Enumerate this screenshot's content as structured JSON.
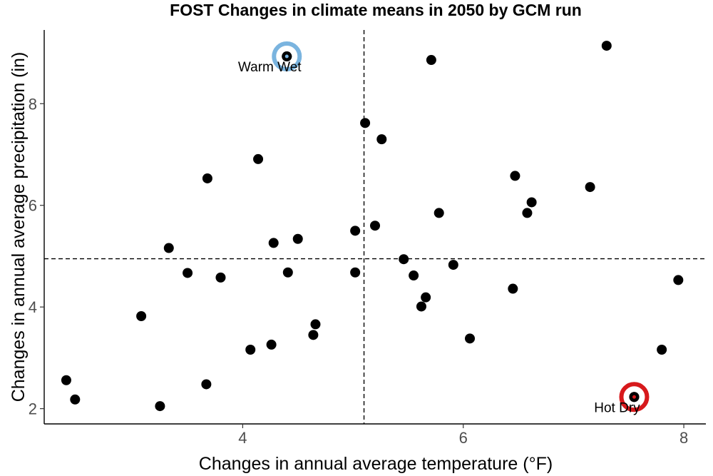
{
  "chart_data": {
    "type": "scatter",
    "title": "FOST Changes in climate means in 2050 by GCM run",
    "xlabel": "Changes in annual average temperature (°F)",
    "ylabel": "Changes in annual average precipitation (in)",
    "xlim": [
      2.2,
      8.2
    ],
    "ylim": [
      1.7,
      9.45
    ],
    "xticks": [
      4,
      6,
      8
    ],
    "yticks": [
      2,
      4,
      6,
      8
    ],
    "grid": false,
    "reference_lines": {
      "x": 5.1,
      "y": 4.95
    },
    "points": [
      {
        "x": 2.4,
        "y": 2.56
      },
      {
        "x": 2.48,
        "y": 2.18
      },
      {
        "x": 3.08,
        "y": 3.82
      },
      {
        "x": 3.25,
        "y": 2.05
      },
      {
        "x": 3.33,
        "y": 5.16
      },
      {
        "x": 3.5,
        "y": 4.67
      },
      {
        "x": 3.67,
        "y": 2.48
      },
      {
        "x": 3.68,
        "y": 6.53
      },
      {
        "x": 3.8,
        "y": 4.58
      },
      {
        "x": 4.07,
        "y": 3.16
      },
      {
        "x": 4.14,
        "y": 6.91
      },
      {
        "x": 4.26,
        "y": 3.26
      },
      {
        "x": 4.28,
        "y": 5.26
      },
      {
        "x": 4.4,
        "y": 8.93
      },
      {
        "x": 4.41,
        "y": 4.68
      },
      {
        "x": 4.5,
        "y": 5.34
      },
      {
        "x": 4.64,
        "y": 3.45
      },
      {
        "x": 4.66,
        "y": 3.66
      },
      {
        "x": 5.02,
        "y": 5.5
      },
      {
        "x": 5.02,
        "y": 4.68
      },
      {
        "x": 5.11,
        "y": 7.62
      },
      {
        "x": 5.2,
        "y": 5.6
      },
      {
        "x": 5.26,
        "y": 7.3
      },
      {
        "x": 5.46,
        "y": 4.94
      },
      {
        "x": 5.55,
        "y": 4.62
      },
      {
        "x": 5.62,
        "y": 4.01
      },
      {
        "x": 5.66,
        "y": 4.19
      },
      {
        "x": 5.71,
        "y": 8.86
      },
      {
        "x": 5.78,
        "y": 5.85
      },
      {
        "x": 5.91,
        "y": 4.83
      },
      {
        "x": 6.06,
        "y": 3.38
      },
      {
        "x": 6.45,
        "y": 4.36
      },
      {
        "x": 6.47,
        "y": 6.58
      },
      {
        "x": 6.58,
        "y": 5.85
      },
      {
        "x": 6.62,
        "y": 6.06
      },
      {
        "x": 7.15,
        "y": 6.36
      },
      {
        "x": 7.3,
        "y": 9.14
      },
      {
        "x": 7.55,
        "y": 2.23
      },
      {
        "x": 7.8,
        "y": 3.16
      },
      {
        "x": 7.95,
        "y": 4.53
      }
    ],
    "highlights": [
      {
        "label": "Warm Wet",
        "x": 4.4,
        "y": 8.93,
        "color": "#7ab4df"
      },
      {
        "label": "Hot Dry",
        "x": 7.55,
        "y": 2.23,
        "color": "#d7191c"
      }
    ]
  }
}
